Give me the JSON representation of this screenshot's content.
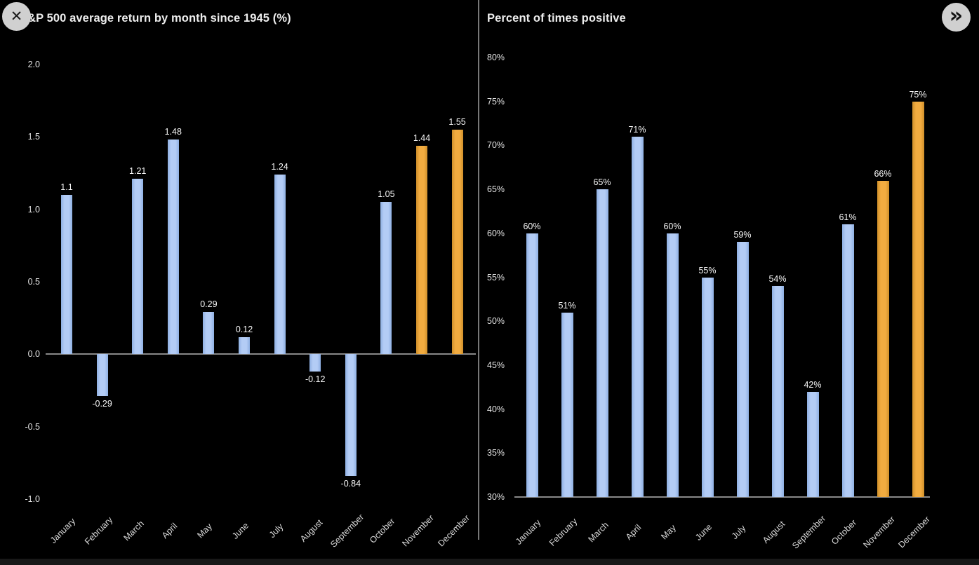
{
  "window": {
    "close_button": {
      "icon": "✕"
    },
    "next_button": {
      "icon": "»"
    }
  },
  "palette": {
    "background": "#000000",
    "bar_blue": "#a7c3ef",
    "bar_orange": "#eca63c",
    "axis_line": "#a0a0a0",
    "text": "#ededed"
  },
  "chart_data": [
    {
      "type": "bar",
      "title": "S&P 500 average return by month since 1945 (%)",
      "categories": [
        "January",
        "February",
        "March",
        "April",
        "May",
        "June",
        "July",
        "August",
        "September",
        "October",
        "November",
        "December"
      ],
      "values": [
        1.1,
        -0.29,
        1.21,
        1.48,
        0.29,
        0.12,
        1.24,
        -0.12,
        -0.84,
        1.05,
        1.44,
        1.55
      ],
      "labels": [
        "1.1",
        "-0.29",
        "1.21",
        "1.48",
        "0.29",
        "0.12",
        "1.24",
        "-0.12",
        "-0.84",
        "1.05",
        "1.44",
        "1.55"
      ],
      "colors": [
        "blue",
        "blue",
        "blue",
        "blue",
        "blue",
        "blue",
        "blue",
        "blue",
        "blue",
        "blue",
        "orange",
        "orange"
      ],
      "ylim": [
        -1.0,
        2.0
      ],
      "yticks": [
        2.0,
        1.5,
        1.0,
        0.5,
        0.0,
        -0.5,
        -1.0
      ],
      "ytick_labels": [
        "2.0",
        "1.5",
        "1.0",
        "0.5",
        "0.0",
        "-0.5",
        "-1.0"
      ],
      "baseline": 0,
      "grid": false,
      "legend": null,
      "xlabel": "",
      "ylabel": ""
    },
    {
      "type": "bar",
      "title": "Percent of times positive",
      "categories": [
        "January",
        "February",
        "March",
        "April",
        "May",
        "June",
        "July",
        "August",
        "September",
        "October",
        "November",
        "December"
      ],
      "values": [
        60,
        51,
        65,
        71,
        60,
        55,
        59,
        54,
        42,
        61,
        66,
        75
      ],
      "labels": [
        "60%",
        "51%",
        "65%",
        "71%",
        "60%",
        "55%",
        "59%",
        "54%",
        "42%",
        "61%",
        "66%",
        "75%"
      ],
      "colors": [
        "blue",
        "blue",
        "blue",
        "blue",
        "blue",
        "blue",
        "blue",
        "blue",
        "blue",
        "blue",
        "orange",
        "orange"
      ],
      "ylim": [
        30,
        80
      ],
      "yticks": [
        80,
        75,
        70,
        65,
        60,
        55,
        50,
        45,
        40,
        35,
        30
      ],
      "ytick_labels": [
        "80%",
        "75%",
        "70%",
        "65%",
        "60%",
        "55%",
        "50%",
        "45%",
        "40%",
        "35%",
        "30%"
      ],
      "baseline": 30,
      "grid": false,
      "legend": null,
      "xlabel": "",
      "ylabel": ""
    }
  ]
}
